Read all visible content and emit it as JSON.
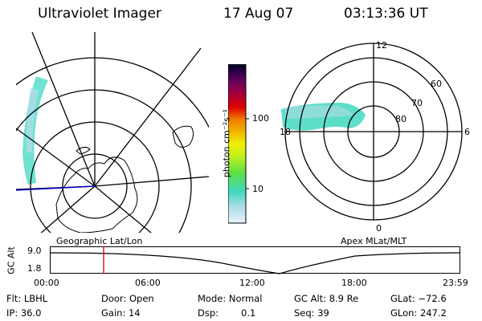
{
  "header": {
    "instrument": "Ultraviolet Imager",
    "date": "17 Aug 07",
    "time": "03:13:36 UT"
  },
  "geographic_panel": {
    "label": "Geographic Lat/Lon"
  },
  "apex_panel": {
    "label": "Apex MLat/MLT",
    "lat_labels": [
      "60",
      "70",
      "80"
    ],
    "mlt_labels": [
      "12",
      "18",
      "6",
      "0"
    ]
  },
  "colorbar": {
    "unit": "photon cm⁻²s⁻¹",
    "ticks": [
      "100",
      "10"
    ],
    "colors": [
      "#e8f4f8",
      "#b0dce8",
      "#40d8c0",
      "#60e040",
      "#c0f020",
      "#f0f000",
      "#f0b000",
      "#f08000",
      "#e00000",
      "#a00040",
      "#600060",
      "#200040",
      "#000020"
    ]
  },
  "altitude_plot": {
    "axis_label": "GC Alt",
    "y_ticks": [
      "9.0",
      "1.8"
    ],
    "x_ticks": [
      "00:00",
      "06:00",
      "12:00",
      "18:00",
      "23:59"
    ],
    "marker_color": "#cc0000"
  },
  "info": {
    "flt": "Flt: LBHL",
    "ip": "IP: 36.0",
    "door": "Door: Open",
    "gain": "Gain: 14",
    "mode": "Mode: Normal",
    "dsp_label": "Dsp:",
    "dsp_value": "0.1",
    "gc_alt": "GC Alt: 8.9 Re",
    "seq": "Seq: 39",
    "glat": "GLat: −72.6",
    "glon": "GLon: 247.2"
  }
}
